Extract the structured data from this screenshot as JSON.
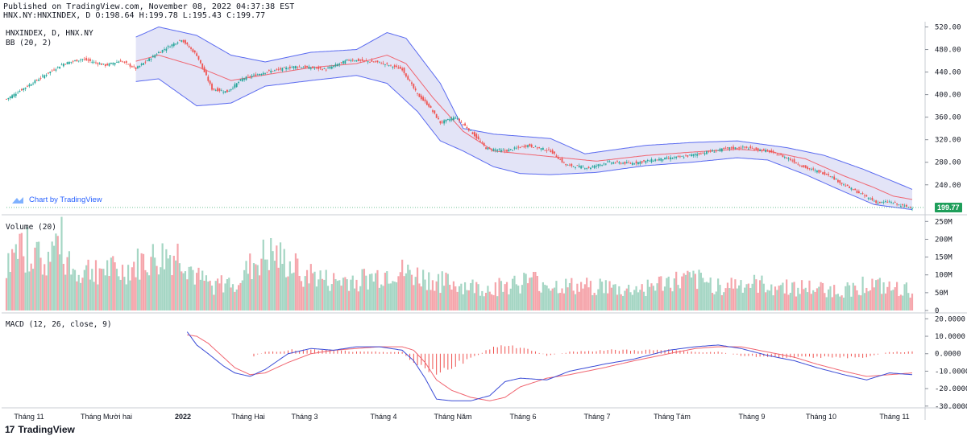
{
  "header": {
    "published": "Published on TradingView.com, November 08, 2022 04:37:38 EST",
    "ohlc": "HNX.NY:HNXINDEX, D O:198.64 H:199.78 L:195.43 C:199.77"
  },
  "panes": {
    "price_label": "HNXINDEX, D, HNX.NY",
    "bb_label": "BB (20, 2)",
    "volume_label": "Volume (20)",
    "macd_label": "MACD (12, 26, close, 9)",
    "tv_link": "Chart by TradingView",
    "last_price": "199.77"
  },
  "footer": {
    "brand": "TradingView",
    "logo": "17"
  },
  "colors": {
    "up": "#26a69a",
    "down": "#ef5350",
    "vol_up": "#a5d6c4",
    "vol_down": "#f5a5ab",
    "bb_band": "#5b6bf0",
    "bb_fill": "#e3e4f7",
    "bb_basis": "#f06570",
    "macd": "#3a4bd6",
    "signal": "#f06570",
    "hist": "#ef5350"
  },
  "chart_data": [
    {
      "type": "candlestick",
      "title": "HNXINDEX, D, HNX.NY",
      "indicator": "BB (20, 2)",
      "x_ticks": [
        "Tháng 11",
        "Tháng Mười hai",
        "2022",
        "Tháng Hai",
        "Tháng 3",
        "Tháng 4",
        "Tháng Năm",
        "Tháng 6",
        "Tháng 7",
        "Tháng Tám",
        "Tháng 9",
        "Tháng 10",
        "Tháng 11"
      ],
      "y_ticks": [
        "520.00",
        "480.00",
        "440.00",
        "400.00",
        "360.00",
        "320.00",
        "280.00",
        "240.00"
      ],
      "ylim": [
        194,
        525
      ],
      "close_anchors": [
        [
          0,
          392
        ],
        [
          18,
          430
        ],
        [
          30,
          455
        ],
        [
          40,
          463
        ],
        [
          52,
          452
        ],
        [
          60,
          460
        ],
        [
          68,
          446
        ],
        [
          80,
          475
        ],
        [
          92,
          498
        ],
        [
          100,
          470
        ],
        [
          108,
          410
        ],
        [
          116,
          405
        ],
        [
          124,
          428
        ],
        [
          136,
          440
        ],
        [
          152,
          450
        ],
        [
          168,
          445
        ],
        [
          180,
          462
        ],
        [
          196,
          457
        ],
        [
          208,
          445
        ],
        [
          216,
          400
        ],
        [
          222,
          380
        ],
        [
          228,
          350
        ],
        [
          236,
          360
        ],
        [
          244,
          335
        ],
        [
          252,
          305
        ],
        [
          262,
          300
        ],
        [
          274,
          310
        ],
        [
          286,
          300
        ],
        [
          294,
          275
        ],
        [
          306,
          270
        ],
        [
          316,
          280
        ],
        [
          328,
          278
        ],
        [
          342,
          285
        ],
        [
          356,
          290
        ],
        [
          368,
          298
        ],
        [
          380,
          305
        ],
        [
          388,
          306
        ],
        [
          400,
          300
        ],
        [
          410,
          288
        ],
        [
          420,
          270
        ],
        [
          432,
          258
        ],
        [
          440,
          240
        ],
        [
          450,
          222
        ],
        [
          458,
          208
        ],
        [
          464,
          210
        ],
        [
          470,
          203
        ],
        [
          476,
          199.77
        ]
      ],
      "last_close": 199.77,
      "bb_upper": [
        [
          0,
          500
        ],
        [
          30,
          505
        ],
        [
          60,
          490
        ],
        [
          80,
          520
        ],
        [
          100,
          505
        ],
        [
          118,
          470
        ],
        [
          136,
          458
        ],
        [
          160,
          475
        ],
        [
          184,
          480
        ],
        [
          200,
          510
        ],
        [
          210,
          500
        ],
        [
          228,
          420
        ],
        [
          240,
          340
        ],
        [
          256,
          330
        ],
        [
          286,
          322
        ],
        [
          304,
          295
        ],
        [
          336,
          310
        ],
        [
          360,
          315
        ],
        [
          384,
          318
        ],
        [
          410,
          306
        ],
        [
          430,
          292
        ],
        [
          450,
          268
        ],
        [
          466,
          246
        ],
        [
          476,
          232
        ]
      ],
      "bb_lower": [
        [
          0,
          372
        ],
        [
          24,
          412
        ],
        [
          60,
          420
        ],
        [
          80,
          428
        ],
        [
          100,
          380
        ],
        [
          118,
          385
        ],
        [
          136,
          415
        ],
        [
          160,
          425
        ],
        [
          184,
          434
        ],
        [
          200,
          420
        ],
        [
          216,
          370
        ],
        [
          228,
          318
        ],
        [
          240,
          300
        ],
        [
          256,
          272
        ],
        [
          270,
          260
        ],
        [
          286,
          258
        ],
        [
          310,
          262
        ],
        [
          336,
          274
        ],
        [
          360,
          280
        ],
        [
          384,
          288
        ],
        [
          400,
          284
        ],
        [
          420,
          258
        ],
        [
          440,
          228
        ],
        [
          456,
          205
        ],
        [
          476,
          196
        ]
      ],
      "bb_basis": [
        [
          0,
          440
        ],
        [
          30,
          455
        ],
        [
          60,
          452
        ],
        [
          80,
          470
        ],
        [
          100,
          450
        ],
        [
          118,
          425
        ],
        [
          136,
          435
        ],
        [
          160,
          448
        ],
        [
          184,
          455
        ],
        [
          200,
          470
        ],
        [
          210,
          455
        ],
        [
          224,
          395
        ],
        [
          240,
          335
        ],
        [
          256,
          300
        ],
        [
          286,
          290
        ],
        [
          310,
          282
        ],
        [
          336,
          292
        ],
        [
          360,
          298
        ],
        [
          384,
          303
        ],
        [
          400,
          300
        ],
        [
          420,
          286
        ],
        [
          440,
          256
        ],
        [
          456,
          235
        ],
        [
          466,
          220
        ],
        [
          476,
          214
        ]
      ]
    },
    {
      "type": "bar",
      "title": "Volume (20)",
      "y_ticks": [
        "250M",
        "200M",
        "150M",
        "100M",
        "50M",
        "0"
      ],
      "ylim": [
        0,
        262
      ],
      "volume_anchors": [
        [
          0,
          125
        ],
        [
          12,
          180
        ],
        [
          20,
          130
        ],
        [
          28,
          200
        ],
        [
          36,
          105
        ],
        [
          48,
          120
        ],
        [
          60,
          105
        ],
        [
          72,
          135
        ],
        [
          84,
          150
        ],
        [
          92,
          155
        ],
        [
          100,
          90
        ],
        [
          108,
          70
        ],
        [
          116,
          75
        ],
        [
          124,
          95
        ],
        [
          132,
          140
        ],
        [
          140,
          155
        ],
        [
          150,
          120
        ],
        [
          160,
          100
        ],
        [
          170,
          80
        ],
        [
          180,
          85
        ],
        [
          192,
          90
        ],
        [
          204,
          110
        ],
        [
          216,
          95
        ],
        [
          228,
          80
        ],
        [
          240,
          70
        ],
        [
          252,
          60
        ],
        [
          266,
          75
        ],
        [
          276,
          85
        ],
        [
          288,
          70
        ],
        [
          300,
          65
        ],
        [
          312,
          70
        ],
        [
          324,
          55
        ],
        [
          336,
          65
        ],
        [
          348,
          80
        ],
        [
          362,
          85
        ],
        [
          374,
          70
        ],
        [
          386,
          75
        ],
        [
          400,
          70
        ],
        [
          414,
          65
        ],
        [
          428,
          60
        ],
        [
          440,
          55
        ],
        [
          452,
          75
        ],
        [
          464,
          60
        ],
        [
          476,
          55
        ]
      ]
    },
    {
      "type": "line",
      "title": "MACD (12, 26, close, 9)",
      "y_ticks": [
        "20.0000",
        "10.0000",
        "0.0000",
        "-10.0000",
        "-20.0000",
        "-30.0000"
      ],
      "ylim": [
        -31,
        22
      ],
      "series": [
        {
          "key": "macd",
          "points": [
            [
              0,
              22
            ],
            [
              14,
              14
            ],
            [
              26,
              11
            ],
            [
              40,
              10
            ],
            [
              52,
              16
            ],
            [
              60,
              12
            ],
            [
              74,
              8
            ],
            [
              86,
              10
            ],
            [
              94,
              14
            ],
            [
              100,
              5
            ],
            [
              106,
              0
            ],
            [
              114,
              -7
            ],
            [
              120,
              -11
            ],
            [
              128,
              -13
            ],
            [
              136,
              -9
            ],
            [
              148,
              0
            ],
            [
              160,
              3
            ],
            [
              172,
              2
            ],
            [
              184,
              4
            ],
            [
              196,
              4
            ],
            [
              208,
              2
            ],
            [
              214,
              -4
            ],
            [
              220,
              -14
            ],
            [
              226,
              -26
            ],
            [
              234,
              -27
            ],
            [
              244,
              -27
            ],
            [
              254,
              -24
            ],
            [
              262,
              -16
            ],
            [
              270,
              -14
            ],
            [
              284,
              -15
            ],
            [
              296,
              -10
            ],
            [
              314,
              -6
            ],
            [
              330,
              -3
            ],
            [
              348,
              2
            ],
            [
              362,
              4
            ],
            [
              374,
              5
            ],
            [
              386,
              3
            ],
            [
              400,
              -1
            ],
            [
              414,
              -4
            ],
            [
              426,
              -8
            ],
            [
              440,
              -12
            ],
            [
              452,
              -15
            ],
            [
              464,
              -11
            ],
            [
              476,
              -12
            ]
          ]
        },
        {
          "key": "signal",
          "points": [
            [
              0,
              22
            ],
            [
              14,
              18
            ],
            [
              26,
              14
            ],
            [
              40,
              11
            ],
            [
              52,
              12
            ],
            [
              60,
              13
            ],
            [
              74,
              11
            ],
            [
              86,
              10
            ],
            [
              94,
              11
            ],
            [
              100,
              10
            ],
            [
              106,
              6
            ],
            [
              114,
              -2
            ],
            [
              120,
              -8
            ],
            [
              128,
              -12
            ],
            [
              136,
              -11
            ],
            [
              148,
              -5
            ],
            [
              160,
              0
            ],
            [
              172,
              2
            ],
            [
              184,
              3
            ],
            [
              196,
              4
            ],
            [
              208,
              4
            ],
            [
              214,
              2
            ],
            [
              220,
              -5
            ],
            [
              226,
              -15
            ],
            [
              234,
              -21
            ],
            [
              244,
              -25
            ],
            [
              254,
              -27
            ],
            [
              262,
              -25
            ],
            [
              270,
              -19
            ],
            [
              284,
              -14
            ],
            [
              296,
              -12
            ],
            [
              314,
              -8
            ],
            [
              330,
              -4
            ],
            [
              348,
              0
            ],
            [
              362,
              3
            ],
            [
              374,
              4
            ],
            [
              386,
              4
            ],
            [
              400,
              1
            ],
            [
              414,
              -2
            ],
            [
              426,
              -6
            ],
            [
              440,
              -10
            ],
            [
              452,
              -13
            ],
            [
              464,
              -12
            ],
            [
              476,
              -11
            ]
          ]
        },
        {
          "key": "hist",
          "points": [
            [
              0,
              -1
            ],
            [
              14,
              -2
            ],
            [
              26,
              -3
            ],
            [
              40,
              -1
            ],
            [
              52,
              1
            ],
            [
              60,
              -1
            ],
            [
              74,
              -2
            ],
            [
              86,
              1
            ],
            [
              94,
              1
            ],
            [
              100,
              2
            ],
            [
              106,
              -2
            ],
            [
              114,
              -2
            ],
            [
              120,
              -3
            ],
            [
              128,
              -2
            ],
            [
              136,
              1
            ],
            [
              148,
              2
            ],
            [
              160,
              2
            ],
            [
              172,
              2
            ],
            [
              184,
              1
            ],
            [
              196,
              1
            ],
            [
              208,
              1
            ],
            [
              214,
              -5
            ],
            [
              220,
              -9
            ],
            [
              226,
              -11
            ],
            [
              234,
              -7
            ],
            [
              244,
              -3
            ],
            [
              254,
              3
            ],
            [
              262,
              5
            ],
            [
              270,
              4
            ],
            [
              284,
              -1
            ],
            [
              296,
              1
            ],
            [
              314,
              2
            ],
            [
              330,
              2
            ],
            [
              348,
              2
            ],
            [
              362,
              1
            ],
            [
              374,
              1
            ],
            [
              386,
              -1
            ],
            [
              400,
              -2
            ],
            [
              414,
              -2
            ],
            [
              426,
              -2
            ],
            [
              440,
              -2
            ],
            [
              452,
              -2
            ],
            [
              464,
              1
            ],
            [
              476,
              1
            ]
          ]
        }
      ]
    }
  ]
}
